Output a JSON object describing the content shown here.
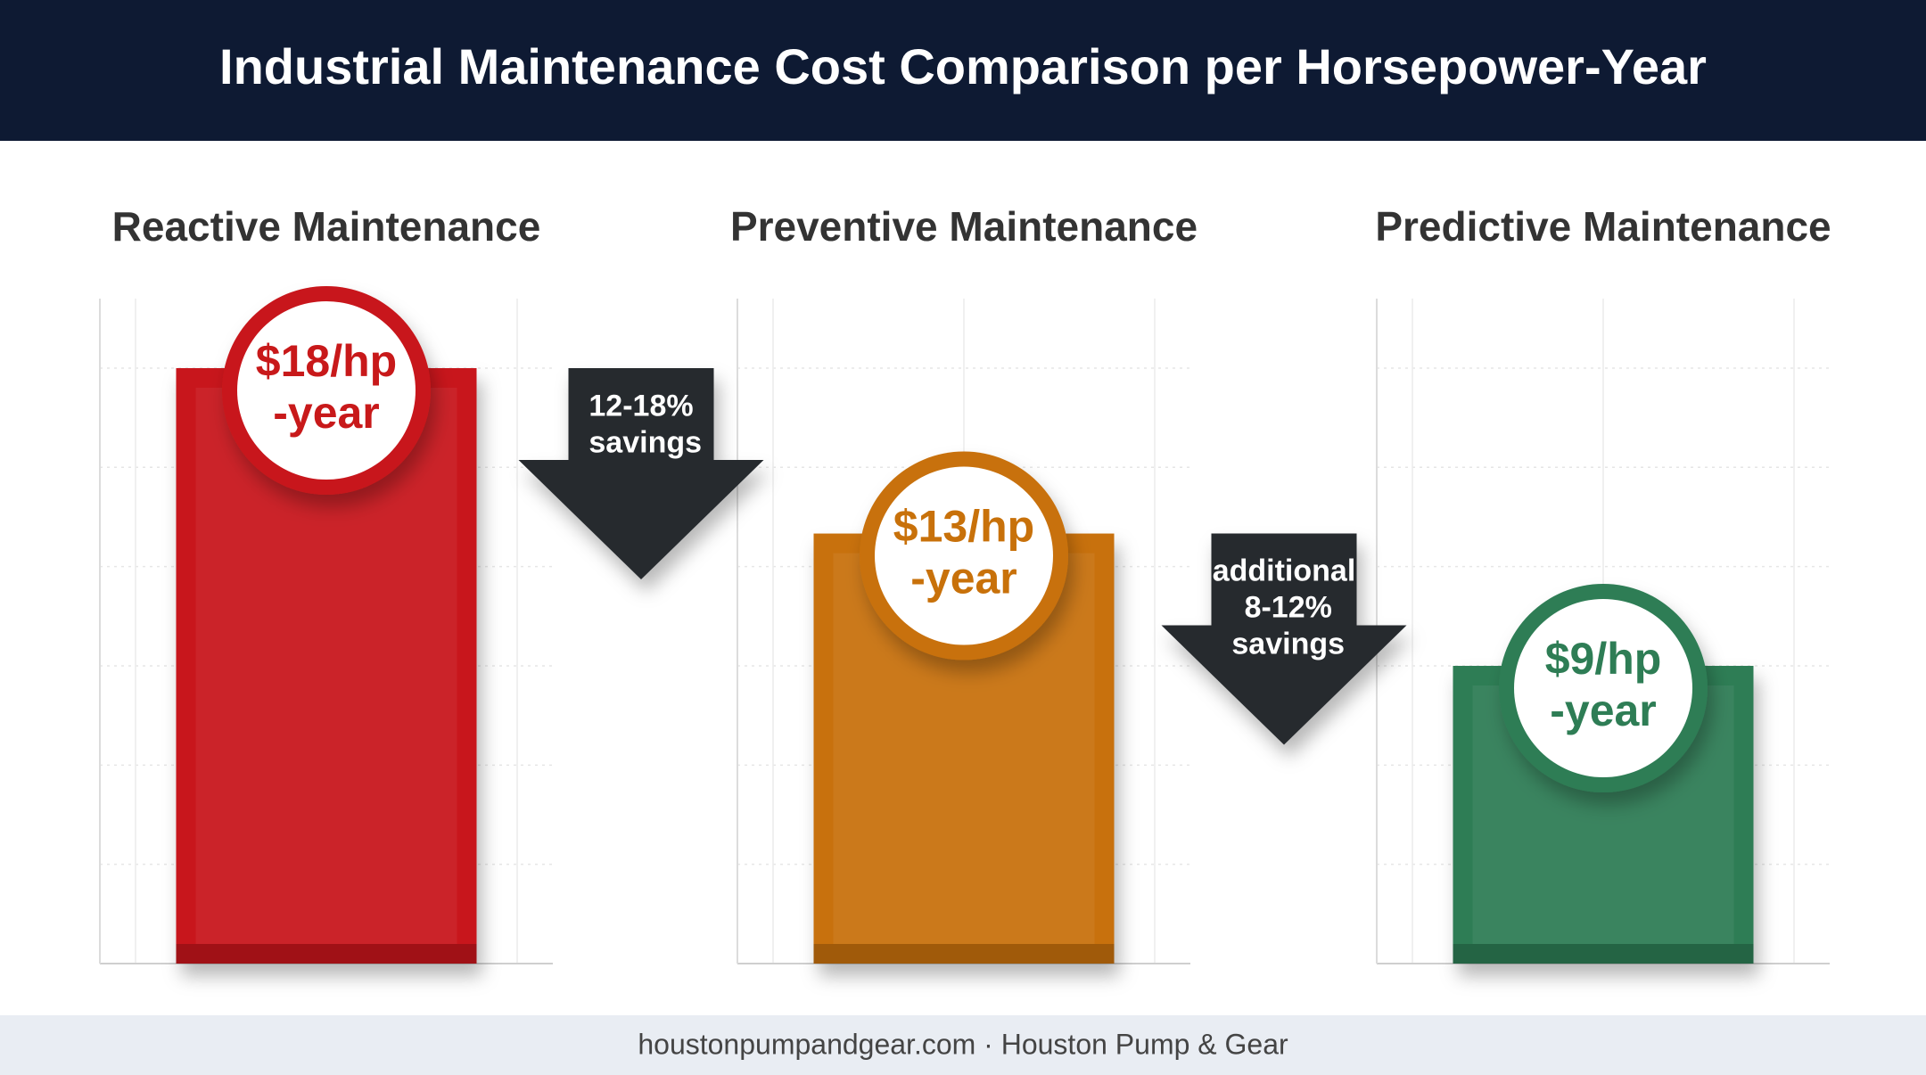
{
  "chart_data": {
    "type": "bar",
    "title": "Industrial Maintenance Cost Comparison per Horsepower-Year",
    "categories": [
      "Reactive Maintenance",
      "Preventive Maintenance",
      "Predictive Maintenance"
    ],
    "values": [
      18,
      13,
      9
    ],
    "value_labels": [
      "$18/hp-year",
      "$13/hp-year",
      "$9/hp-year"
    ],
    "colors": [
      "#c8191a",
      "#c8710a",
      "#2e7d55"
    ],
    "annotations": [
      "12-18% savings",
      "additional 8-12% savings"
    ],
    "footer": "houstonpumpandgear.com · Houston Pump & Gear"
  }
}
